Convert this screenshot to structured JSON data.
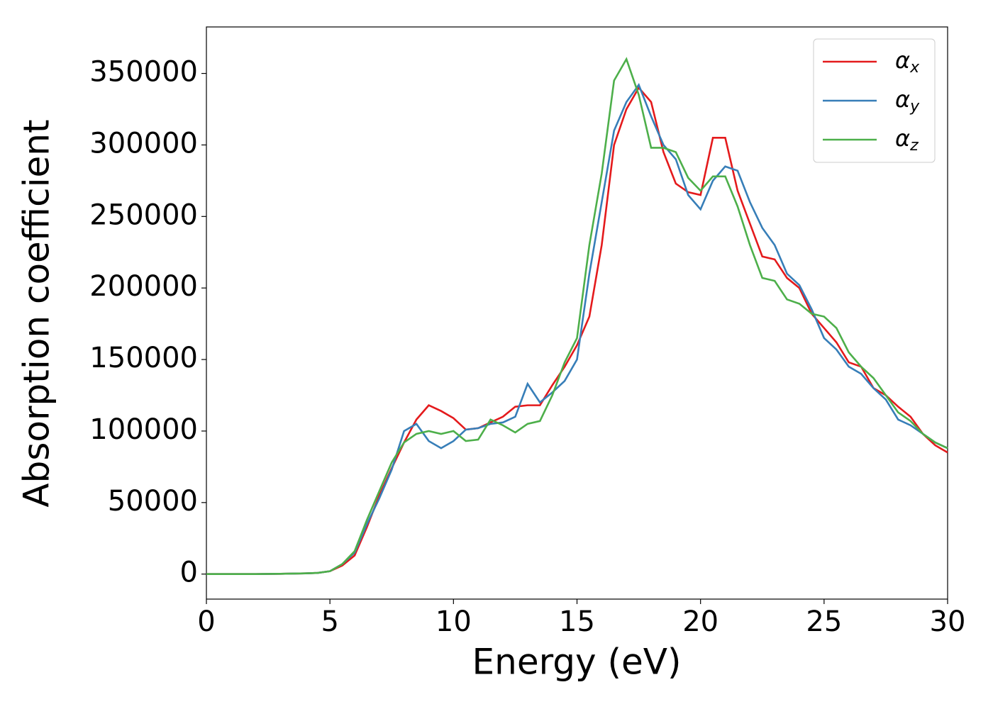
{
  "chart_data": {
    "type": "line",
    "xlabel": "Energy (eV)",
    "ylabel": "Absorption coefficient",
    "x": [
      0,
      1,
      2,
      3,
      4,
      4.5,
      5,
      5.5,
      6,
      6.5,
      7,
      7.5,
      8,
      8.5,
      9,
      9.5,
      10,
      10.5,
      11,
      11.5,
      12,
      12.5,
      13,
      13.5,
      14,
      14.5,
      15,
      15.5,
      16,
      16.5,
      17,
      17.5,
      18,
      18.5,
      19,
      19.5,
      20,
      20.5,
      21,
      21.5,
      22,
      22.5,
      23,
      23.5,
      24,
      24.5,
      25,
      25.5,
      26,
      26.5,
      27,
      27.5,
      28,
      28.5,
      29,
      29.5,
      30
    ],
    "series": [
      {
        "name": "αx",
        "color": "#e41a1c",
        "values": [
          0,
          0,
          0,
          200,
          500,
          800,
          2000,
          6000,
          13000,
          33000,
          55000,
          74000,
          92000,
          108000,
          118000,
          114000,
          109000,
          101000,
          102000,
          106000,
          110000,
          117000,
          118000,
          118000,
          132000,
          145000,
          160000,
          180000,
          230000,
          300000,
          325000,
          340000,
          330000,
          295000,
          273000,
          267000,
          265000,
          305000,
          305000,
          268000,
          245000,
          222000,
          220000,
          207000,
          200000,
          182000,
          172000,
          162000,
          148000,
          145000,
          130000,
          125000,
          117000,
          110000,
          98000,
          90000,
          85000
        ]
      },
      {
        "name": "αy",
        "color": "#377eb8",
        "values": [
          0,
          0,
          0,
          200,
          500,
          800,
          2000,
          7000,
          15000,
          35000,
          53000,
          73000,
          100000,
          105000,
          93000,
          88000,
          93000,
          101000,
          102000,
          105000,
          106000,
          110000,
          133000,
          120000,
          127000,
          135000,
          150000,
          210000,
          260000,
          310000,
          330000,
          342000,
          320000,
          300000,
          290000,
          265000,
          255000,
          275000,
          285000,
          282000,
          260000,
          242000,
          230000,
          210000,
          202000,
          185000,
          165000,
          157000,
          145000,
          140000,
          130000,
          122000,
          108000,
          104000,
          98000,
          92000,
          88000
        ]
      },
      {
        "name": "αz",
        "color": "#4daf4a",
        "values": [
          0,
          0,
          0,
          200,
          500,
          800,
          2000,
          7000,
          16000,
          38000,
          58000,
          78000,
          92000,
          98000,
          100000,
          98000,
          100000,
          93000,
          94000,
          108000,
          104000,
          99000,
          105000,
          107000,
          125000,
          148000,
          165000,
          230000,
          280000,
          345000,
          360000,
          335000,
          298000,
          298000,
          295000,
          277000,
          268000,
          278000,
          278000,
          257000,
          230000,
          207000,
          205000,
          192000,
          189000,
          182000,
          180000,
          172000,
          155000,
          145000,
          137000,
          125000,
          113000,
          107000,
          98000,
          92000,
          88000
        ]
      }
    ],
    "xlim": [
      0,
      30
    ],
    "xticks": [
      0,
      5,
      10,
      15,
      20,
      25,
      30
    ],
    "ylim": [
      -17500,
      382500
    ],
    "yticks": [
      0,
      50000,
      100000,
      150000,
      200000,
      250000,
      300000,
      350000
    ],
    "grid": false,
    "legend": "upper right"
  }
}
